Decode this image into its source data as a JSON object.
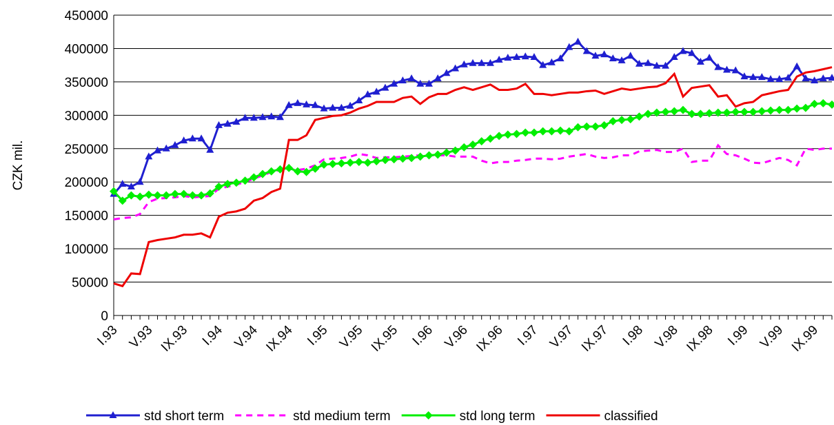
{
  "chart_data": {
    "type": "line",
    "y_label": "CZK mil.",
    "categories": [
      "I.93",
      null,
      null,
      null,
      "V.93",
      null,
      null,
      null,
      "IX.93",
      null,
      null,
      null,
      "I.94",
      null,
      null,
      null,
      "V.94",
      null,
      null,
      null,
      "IX.94",
      null,
      null,
      null,
      "I.95",
      null,
      null,
      null,
      "V.95",
      null,
      null,
      null,
      "IX.95",
      null,
      null,
      null,
      "I.96",
      null,
      null,
      null,
      "V.96",
      null,
      null,
      null,
      "IX.96",
      null,
      null,
      null,
      "I.97",
      null,
      null,
      null,
      "V.97",
      null,
      null,
      null,
      "IX.97",
      null,
      null,
      null,
      "I.98",
      null,
      null,
      null,
      "V.98",
      null,
      null,
      null,
      "IX.98",
      null,
      null,
      null,
      "I.99",
      null,
      null,
      null,
      "V.99",
      null,
      null,
      null,
      "IX.99",
      null,
      null
    ],
    "ylim": [
      0,
      450000
    ],
    "yticks": [
      0,
      50000,
      100000,
      150000,
      200000,
      250000,
      300000,
      350000,
      400000,
      450000
    ],
    "grid": true,
    "legend": "bottom",
    "series": [
      {
        "name": "std short term",
        "color": "#1f1fd0",
        "marker": "triangle",
        "dashed": false,
        "values": [
          182000,
          197000,
          193000,
          200000,
          238000,
          247000,
          250000,
          255000,
          262000,
          265000,
          265000,
          248000,
          285000,
          287000,
          290000,
          296000,
          296000,
          297000,
          298000,
          297000,
          315000,
          318000,
          316000,
          315000,
          310000,
          311000,
          311000,
          314000,
          322000,
          331000,
          335000,
          341000,
          347000,
          352000,
          355000,
          347000,
          347000,
          355000,
          363000,
          370000,
          376000,
          378000,
          378000,
          378000,
          383000,
          386000,
          387000,
          388000,
          387000,
          375000,
          379000,
          385000,
          402000,
          410000,
          396000,
          389000,
          391000,
          385000,
          382000,
          389000,
          377000,
          378000,
          374000,
          374000,
          387000,
          396000,
          393000,
          380000,
          386000,
          372000,
          368000,
          367000,
          358000,
          357000,
          357000,
          354000,
          354000,
          356000,
          373000,
          355000,
          352000,
          355000,
          356000
        ]
      },
      {
        "name": "std medium term",
        "color": "#ff00ff",
        "marker": "none",
        "dashed": true,
        "values": [
          144000,
          146000,
          147000,
          152000,
          170000,
          175000,
          176000,
          177000,
          179000,
          177000,
          178000,
          179000,
          190000,
          193000,
          196000,
          200000,
          205000,
          210000,
          215000,
          218000,
          220000,
          218000,
          220000,
          225000,
          234000,
          235000,
          236000,
          238000,
          242000,
          240000,
          236000,
          237000,
          237000,
          238000,
          239000,
          240000,
          240000,
          240000,
          240000,
          238000,
          238000,
          238000,
          232000,
          228000,
          230000,
          230000,
          232000,
          233000,
          235000,
          235000,
          234000,
          235000,
          238000,
          240000,
          242000,
          238000,
          236000,
          237000,
          240000,
          240000,
          246000,
          247000,
          248000,
          245000,
          245000,
          250000,
          230000,
          232000,
          232000,
          255000,
          242000,
          240000,
          235000,
          229000,
          228000,
          232000,
          236000,
          233000,
          225000,
          250000,
          248000,
          250000,
          250000
        ]
      },
      {
        "name": "std long term",
        "color": "#00ee00",
        "marker": "diamond",
        "dashed": false,
        "values": [
          186000,
          172000,
          180000,
          178000,
          181000,
          180000,
          180000,
          182000,
          182000,
          180000,
          180000,
          183000,
          193000,
          197000,
          199000,
          202000,
          207000,
          212000,
          216000,
          219000,
          221000,
          216000,
          215000,
          220000,
          226000,
          227000,
          228000,
          229000,
          230000,
          229000,
          231000,
          233000,
          234000,
          235000,
          236000,
          238000,
          240000,
          241000,
          244000,
          247000,
          252000,
          256000,
          261000,
          265000,
          269000,
          271000,
          272000,
          274000,
          274000,
          276000,
          276000,
          277000,
          276000,
          282000,
          283000,
          283000,
          285000,
          291000,
          293000,
          294000,
          298000,
          302000,
          304000,
          305000,
          306000,
          308000,
          302000,
          302000,
          303000,
          304000,
          304000,
          305000,
          305000,
          305000,
          306000,
          307000,
          308000,
          308000,
          310000,
          311000,
          317000,
          318000,
          316000
        ]
      },
      {
        "name": "classified",
        "color": "#ee0000",
        "marker": "none",
        "dashed": false,
        "values": [
          48000,
          44000,
          63000,
          62000,
          110000,
          113000,
          115000,
          117000,
          121000,
          121000,
          123000,
          117000,
          148000,
          154000,
          156000,
          160000,
          172000,
          176000,
          185000,
          190000,
          263000,
          263000,
          270000,
          293000,
          296000,
          299000,
          300000,
          304000,
          310000,
          314000,
          320000,
          320000,
          320000,
          326000,
          328000,
          317000,
          327000,
          332000,
          332000,
          338000,
          342000,
          338000,
          342000,
          346000,
          338000,
          338000,
          340000,
          347000,
          332000,
          332000,
          330000,
          332000,
          334000,
          334000,
          336000,
          337000,
          332000,
          336000,
          340000,
          338000,
          340000,
          342000,
          343000,
          348000,
          362000,
          328000,
          341000,
          343000,
          345000,
          328000,
          330000,
          313000,
          318000,
          320000,
          330000,
          333000,
          336000,
          338000,
          358000,
          364000,
          366000,
          369000,
          372000
        ]
      }
    ]
  }
}
